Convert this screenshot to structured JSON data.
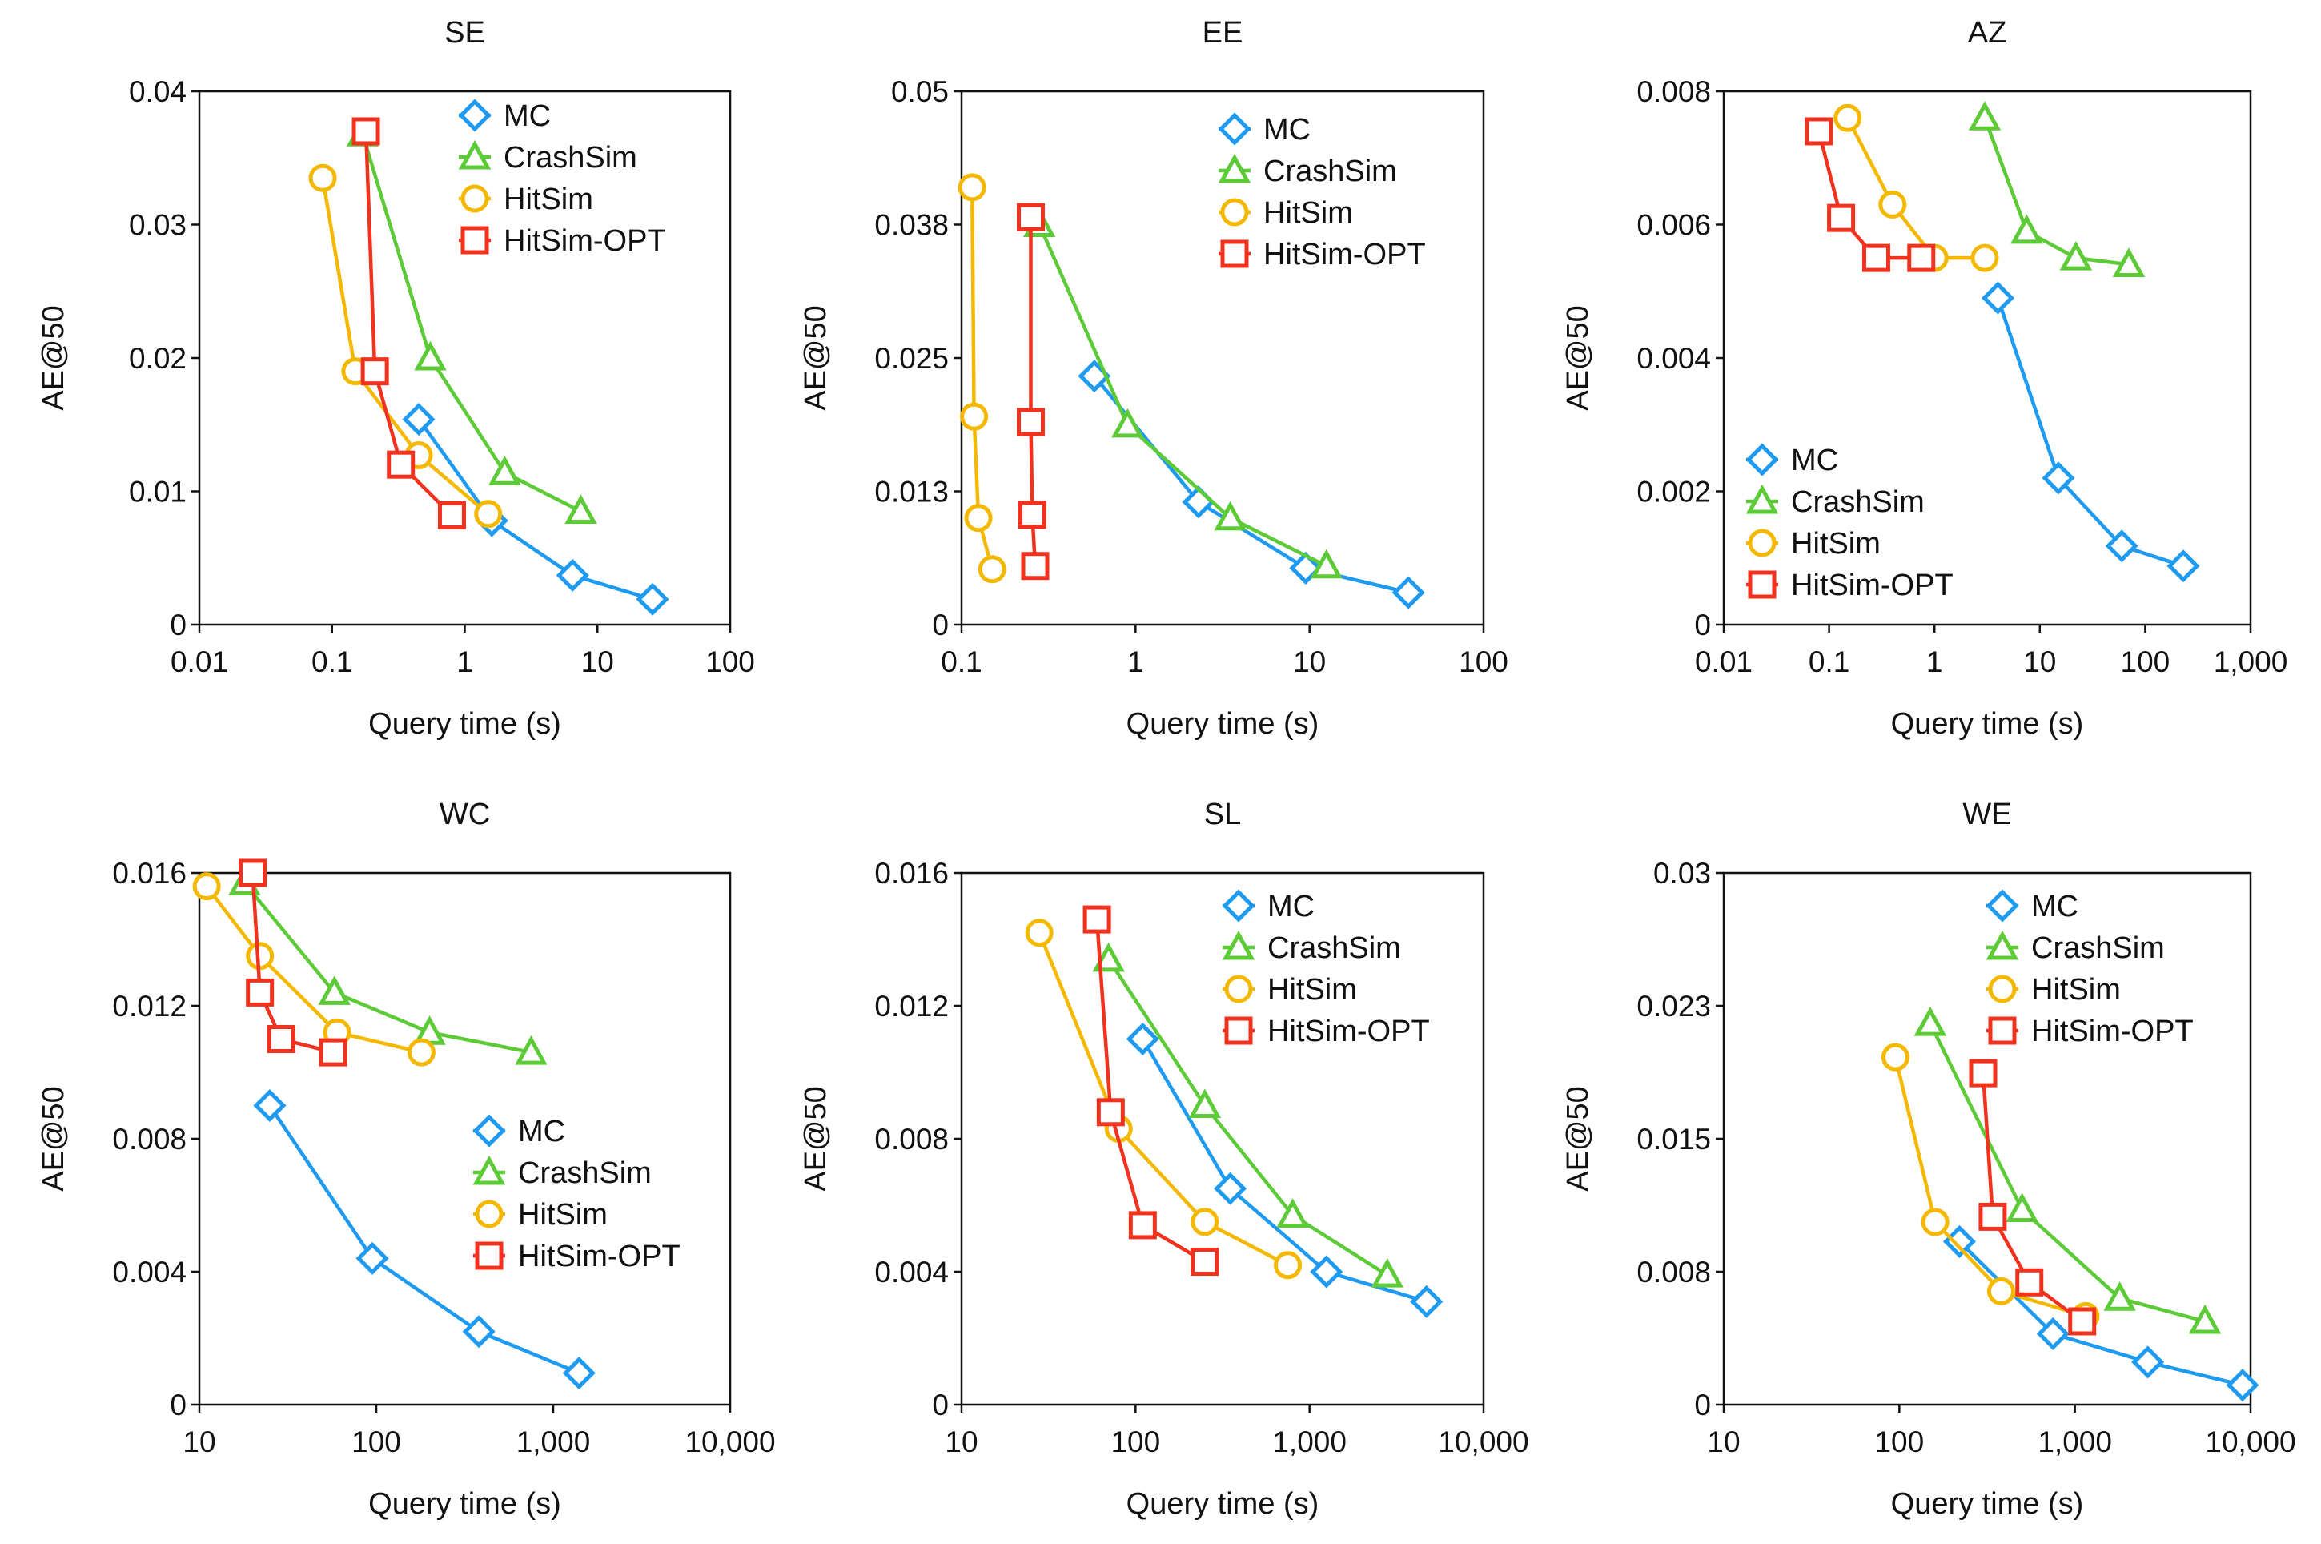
{
  "ylabel_common": "AE@50",
  "xlabel_common": "Query  time (s)",
  "colors": {
    "MC": "#1E9BF0",
    "CrashSim": "#5DCB37",
    "HitSim": "#F5B800",
    "HitSim-OPT": "#F0321E"
  },
  "markers": {
    "MC": "diamond",
    "CrashSim": "triangle",
    "HitSim": "circle",
    "HitSim-OPT": "square"
  },
  "chart_data": [
    {
      "type": "line",
      "title": "SE",
      "xlabel": "Query  time (s)",
      "ylabel": "AE@50",
      "xscale": "log",
      "xlim": [
        0.01,
        100
      ],
      "xticks": [
        0.01,
        0.1,
        1,
        10,
        100
      ],
      "xtick_labels": [
        "0.01",
        "0.1",
        "1",
        "10",
        "100"
      ],
      "ylim": [
        0,
        0.04
      ],
      "yticks": [
        0,
        0.01,
        0.02,
        0.03,
        0.04
      ],
      "ytick_labels": [
        "0",
        "0.01",
        "0.02",
        "0.03",
        "0.04"
      ],
      "legend_position": "top-right",
      "series": [
        {
          "name": "MC",
          "x": [
            0.45,
            1.6,
            6.5,
            26
          ],
          "y": [
            0.0154,
            0.0078,
            0.0037,
            0.0019
          ]
        },
        {
          "name": "CrashSim",
          "x": [
            0.17,
            0.55,
            2.0,
            7.5
          ],
          "y": [
            0.0368,
            0.02,
            0.0114,
            0.0085
          ]
        },
        {
          "name": "HitSim",
          "x": [
            0.085,
            0.15,
            0.45,
            1.5
          ],
          "y": [
            0.0335,
            0.019,
            0.0127,
            0.0083
          ]
        },
        {
          "name": "HitSim-OPT",
          "x": [
            0.18,
            0.21,
            0.33,
            0.8
          ],
          "y": [
            0.037,
            0.019,
            0.012,
            0.0082
          ]
        }
      ]
    },
    {
      "type": "line",
      "title": "EE",
      "xlabel": "Query  time (s)",
      "ylabel": "AE@50",
      "xscale": "log",
      "xlim": [
        0.1,
        100
      ],
      "xticks": [
        0.1,
        1,
        10,
        100
      ],
      "xtick_labels": [
        "0.1",
        "1",
        "10",
        "100"
      ],
      "ylim": [
        0,
        0.05
      ],
      "yticks": [
        0,
        0.0125,
        0.025,
        0.0375,
        0.05
      ],
      "ytick_labels": [
        "0",
        "0.013",
        "0.025",
        "0.038",
        "0.05"
      ],
      "legend_position": "top-right",
      "series": [
        {
          "name": "MC",
          "x": [
            0.58,
            2.3,
            9.5,
            37
          ],
          "y": [
            0.0233,
            0.0115,
            0.0053,
            0.003
          ]
        },
        {
          "name": "CrashSim",
          "x": [
            0.28,
            0.9,
            3.5,
            12.5
          ],
          "y": [
            0.0375,
            0.0187,
            0.01,
            0.0055
          ]
        },
        {
          "name": "HitSim",
          "x": [
            0.115,
            0.118,
            0.125,
            0.15
          ],
          "y": [
            0.041,
            0.0195,
            0.01,
            0.0052
          ]
        },
        {
          "name": "HitSim-OPT",
          "x": [
            0.25,
            0.25,
            0.255,
            0.265
          ],
          "y": [
            0.0382,
            0.019,
            0.0103,
            0.0055
          ]
        }
      ]
    },
    {
      "type": "line",
      "title": "AZ",
      "xlabel": "Query  time (s)",
      "ylabel": "AE@50",
      "xscale": "log",
      "xlim": [
        0.01,
        1000
      ],
      "xticks": [
        0.01,
        0.1,
        1,
        10,
        100,
        1000
      ],
      "xtick_labels": [
        "0.01",
        "0.1",
        "1",
        "10",
        "100",
        "1,000"
      ],
      "ylim": [
        0,
        0.008
      ],
      "yticks": [
        0,
        0.002,
        0.004,
        0.006,
        0.008
      ],
      "ytick_labels": [
        "0",
        "0.002",
        "0.004",
        "0.006",
        "0.008"
      ],
      "legend_position": "bottom-left",
      "series": [
        {
          "name": "MC",
          "x": [
            4,
            15,
            60,
            230
          ],
          "y": [
            0.0049,
            0.0022,
            0.00118,
            0.00088
          ]
        },
        {
          "name": "CrashSim",
          "x": [
            3,
            7.5,
            22,
            70
          ],
          "y": [
            0.0076,
            0.0059,
            0.0055,
            0.0054
          ]
        },
        {
          "name": "HitSim",
          "x": [
            0.15,
            0.4,
            1.0,
            3.0
          ],
          "y": [
            0.0076,
            0.0063,
            0.0055,
            0.0055
          ]
        },
        {
          "name": "HitSim-OPT",
          "x": [
            0.08,
            0.13,
            0.28,
            0.75
          ],
          "y": [
            0.0074,
            0.0061,
            0.0055,
            0.0055
          ]
        }
      ]
    },
    {
      "type": "line",
      "title": "WC",
      "xlabel": "Query  time (s)",
      "ylabel": "AE@50",
      "xscale": "log",
      "xlim": [
        10,
        10000
      ],
      "xticks": [
        10,
        100,
        1000,
        10000
      ],
      "xtick_labels": [
        "10",
        "100",
        "1,000",
        "10,000"
      ],
      "ylim": [
        0,
        0.016
      ],
      "yticks": [
        0,
        0.004,
        0.008,
        0.012,
        0.016
      ],
      "ytick_labels": [
        "0",
        "0.004",
        "0.008",
        "0.012",
        "0.016"
      ],
      "legend_position": "bottom-right",
      "series": [
        {
          "name": "MC",
          "x": [
            25,
            95,
            380,
            1400
          ],
          "y": [
            0.009,
            0.0044,
            0.0022,
            0.00095
          ]
        },
        {
          "name": "CrashSim",
          "x": [
            18,
            58,
            200,
            750
          ],
          "y": [
            0.0157,
            0.0124,
            0.0112,
            0.0106
          ]
        },
        {
          "name": "HitSim",
          "x": [
            11,
            22,
            60,
            180
          ],
          "y": [
            0.0156,
            0.0135,
            0.0112,
            0.0106
          ]
        },
        {
          "name": "HitSim-OPT",
          "x": [
            20,
            22,
            29,
            57
          ],
          "y": [
            0.016,
            0.0124,
            0.011,
            0.0106
          ]
        }
      ]
    },
    {
      "type": "line",
      "title": "SL",
      "xlabel": "Query  time (s)",
      "ylabel": "AE@50",
      "xscale": "log",
      "xlim": [
        10,
        10000
      ],
      "xticks": [
        10,
        100,
        1000,
        10000
      ],
      "xtick_labels": [
        "10",
        "100",
        "1,000",
        "10,000"
      ],
      "ylim": [
        0,
        0.016
      ],
      "yticks": [
        0,
        0.004,
        0.008,
        0.012,
        0.016
      ],
      "ytick_labels": [
        "0",
        "0.004",
        "0.008",
        "0.012",
        "0.016"
      ],
      "legend_position": "top-right",
      "series": [
        {
          "name": "MC",
          "x": [
            110,
            350,
            1250,
            4700
          ],
          "y": [
            0.011,
            0.0065,
            0.004,
            0.0031
          ]
        },
        {
          "name": "CrashSim",
          "x": [
            70,
            250,
            800,
            2800
          ],
          "y": [
            0.0134,
            0.009,
            0.0057,
            0.0039
          ]
        },
        {
          "name": "HitSim",
          "x": [
            28,
            80,
            250,
            750
          ],
          "y": [
            0.0142,
            0.0083,
            0.0055,
            0.0042
          ]
        },
        {
          "name": "HitSim-OPT",
          "x": [
            60,
            72,
            110,
            250
          ],
          "y": [
            0.0146,
            0.0088,
            0.0054,
            0.0043
          ]
        }
      ]
    },
    {
      "type": "line",
      "title": "WE",
      "xlabel": "Query  time (s)",
      "ylabel": "AE@50",
      "xscale": "log",
      "xlim": [
        10,
        10000
      ],
      "xticks": [
        10,
        100,
        1000,
        10000
      ],
      "xtick_labels": [
        "10",
        "100",
        "1,000",
        "10,000"
      ],
      "ylim": [
        0,
        0.03
      ],
      "yticks": [
        0,
        0.0075,
        0.015,
        0.0225,
        0.03
      ],
      "ytick_labels": [
        "0",
        "0.008",
        "0.015",
        "0.023",
        "0.03"
      ],
      "legend_position": "top-right",
      "series": [
        {
          "name": "MC",
          "x": [
            220,
            750,
            2600,
            9000
          ],
          "y": [
            0.0092,
            0.004,
            0.0024,
            0.0011
          ]
        },
        {
          "name": "CrashSim",
          "x": [
            150,
            500,
            1800,
            5500
          ],
          "y": [
            0.0215,
            0.011,
            0.006,
            0.0047
          ]
        },
        {
          "name": "HitSim",
          "x": [
            95,
            160,
            380,
            1150
          ],
          "y": [
            0.0196,
            0.0103,
            0.0064,
            0.005
          ]
        },
        {
          "name": "HitSim-OPT",
          "x": [
            300,
            340,
            550,
            1100
          ],
          "y": [
            0.0187,
            0.0106,
            0.0069,
            0.0047
          ]
        }
      ]
    }
  ]
}
